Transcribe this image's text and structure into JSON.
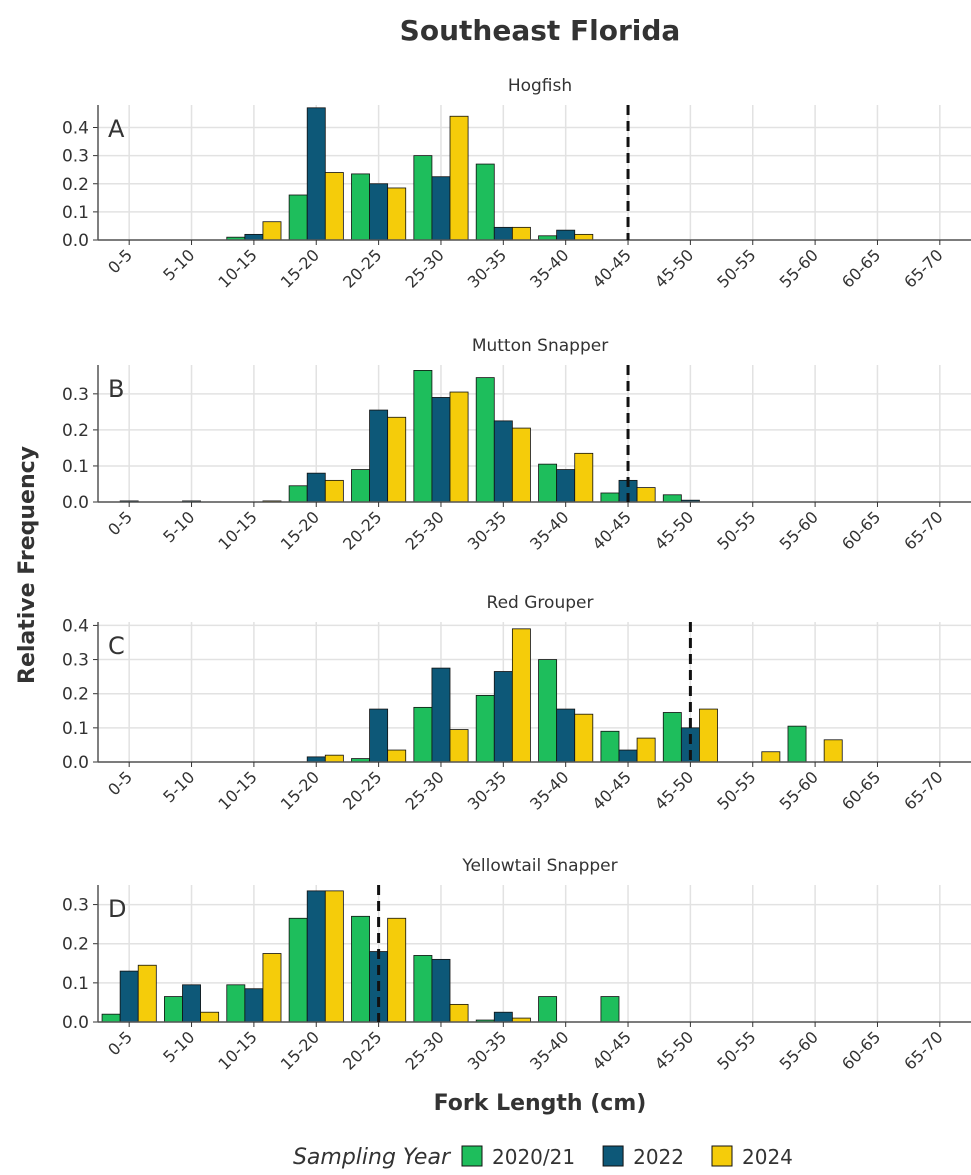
{
  "title": "Southeast Florida",
  "y_label": "Relative Frequency",
  "x_label": "Fork Length (cm)",
  "legend_title": "Sampling Year",
  "chart_data": [
    {
      "type": "bar",
      "title": "Hogfish",
      "annotation": "A",
      "categories": [
        "0-5",
        "5-10",
        "10-15",
        "15-20",
        "20-25",
        "25-30",
        "30-35",
        "35-40",
        "40-45",
        "45-50",
        "50-55",
        "55-60",
        "60-65",
        "65-70"
      ],
      "series": [
        {
          "name": "2020/21",
          "color": "#1ebe5c",
          "values": [
            0,
            0,
            0.01,
            0.16,
            0.235,
            0.3,
            0.27,
            0.015,
            0,
            0,
            0,
            0,
            0,
            0
          ]
        },
        {
          "name": "2022",
          "color": "#0d5878",
          "values": [
            0,
            0,
            0.02,
            0.47,
            0.2,
            0.225,
            0.045,
            0.035,
            0,
            0,
            0,
            0,
            0,
            0
          ]
        },
        {
          "name": "2024",
          "color": "#f5cc0a",
          "values": [
            0,
            0,
            0.065,
            0.24,
            0.185,
            0.44,
            0.045,
            0.02,
            0,
            0,
            0,
            0,
            0,
            0
          ]
        }
      ],
      "ylim": [
        0,
        0.48
      ],
      "yticks": [
        {
          "value": 0,
          "label": "0.0"
        },
        0.1,
        0.2,
        0.3,
        0.4
      ],
      "grid": true,
      "reference_line": "40-45"
    },
    {
      "type": "bar",
      "title": "Mutton Snapper",
      "annotation": "B",
      "categories": [
        "0-5",
        "5-10",
        "10-15",
        "15-20",
        "20-25",
        "25-30",
        "30-35",
        "35-40",
        "40-45",
        "45-50",
        "50-55",
        "55-60",
        "60-65",
        "65-70"
      ],
      "series": [
        {
          "name": "2020/21",
          "color": "#1ebe5c",
          "values": [
            0,
            0,
            0,
            0.045,
            0.09,
            0.365,
            0.345,
            0.105,
            0.025,
            0.02,
            0,
            0,
            0,
            0
          ]
        },
        {
          "name": "2022",
          "color": "#0d5878",
          "values": [
            0.003,
            0.003,
            0,
            0.08,
            0.255,
            0.29,
            0.225,
            0.09,
            0.06,
            0.005,
            0,
            0,
            0,
            0
          ]
        },
        {
          "name": "2024",
          "color": "#f5cc0a",
          "values": [
            0,
            0,
            0.003,
            0.06,
            0.235,
            0.305,
            0.205,
            0.135,
            0.04,
            0,
            0,
            0,
            0,
            0
          ]
        }
      ],
      "ylim": [
        0,
        0.38
      ],
      "yticks": [
        {
          "value": 0,
          "label": "0.0"
        },
        0.1,
        0.2,
        0.3
      ],
      "grid": true,
      "reference_line": "40-45"
    },
    {
      "type": "bar",
      "title": "Red Grouper",
      "annotation": "C",
      "categories": [
        "0-5",
        "5-10",
        "10-15",
        "15-20",
        "20-25",
        "25-30",
        "30-35",
        "35-40",
        "40-45",
        "45-50",
        "50-55",
        "55-60",
        "60-65",
        "65-70"
      ],
      "series": [
        {
          "name": "2020/21",
          "color": "#1ebe5c",
          "values": [
            0,
            0,
            0,
            0,
            0.01,
            0.16,
            0.195,
            0.3,
            0.09,
            0.145,
            0,
            0.105,
            0,
            0
          ]
        },
        {
          "name": "2022",
          "color": "#0d5878",
          "values": [
            0,
            0,
            0,
            0.015,
            0.155,
            0.275,
            0.265,
            0.155,
            0.035,
            0.1,
            0,
            0,
            0,
            0
          ]
        },
        {
          "name": "2024",
          "color": "#f5cc0a",
          "values": [
            0,
            0,
            0,
            0.02,
            0.035,
            0.095,
            0.39,
            0.14,
            0.07,
            0.155,
            0.03,
            0.065,
            0,
            0
          ]
        }
      ],
      "ylim": [
        0,
        0.41
      ],
      "yticks": [
        {
          "value": 0,
          "label": "0.0"
        },
        0.1,
        0.2,
        0.3,
        0.4
      ],
      "grid": true,
      "reference_line": "45-50"
    },
    {
      "type": "bar",
      "title": "Yellowtail Snapper",
      "annotation": "D",
      "categories": [
        "0-5",
        "5-10",
        "10-15",
        "15-20",
        "20-25",
        "25-30",
        "30-35",
        "35-40",
        "40-45",
        "45-50",
        "50-55",
        "55-60",
        "60-65",
        "65-70"
      ],
      "series": [
        {
          "name": "2020/21",
          "color": "#1ebe5c",
          "values": [
            0.02,
            0.065,
            0.095,
            0.265,
            0.27,
            0.17,
            0.005,
            0.065,
            0.065,
            0,
            0,
            0,
            0,
            0
          ]
        },
        {
          "name": "2022",
          "color": "#0d5878",
          "values": [
            0.13,
            0.095,
            0.085,
            0.335,
            0.18,
            0.16,
            0.025,
            0,
            0,
            0,
            0,
            0,
            0,
            0
          ]
        },
        {
          "name": "2024",
          "color": "#f5cc0a",
          "values": [
            0.145,
            0.025,
            0.175,
            0.335,
            0.265,
            0.045,
            0.01,
            0,
            0,
            0,
            0,
            0,
            0,
            0
          ]
        }
      ],
      "ylim": [
        0,
        0.35
      ],
      "yticks": [
        {
          "value": 0,
          "label": "0.0"
        },
        0.1,
        0.2,
        0.3
      ],
      "grid": true,
      "reference_line": "20-25"
    }
  ]
}
